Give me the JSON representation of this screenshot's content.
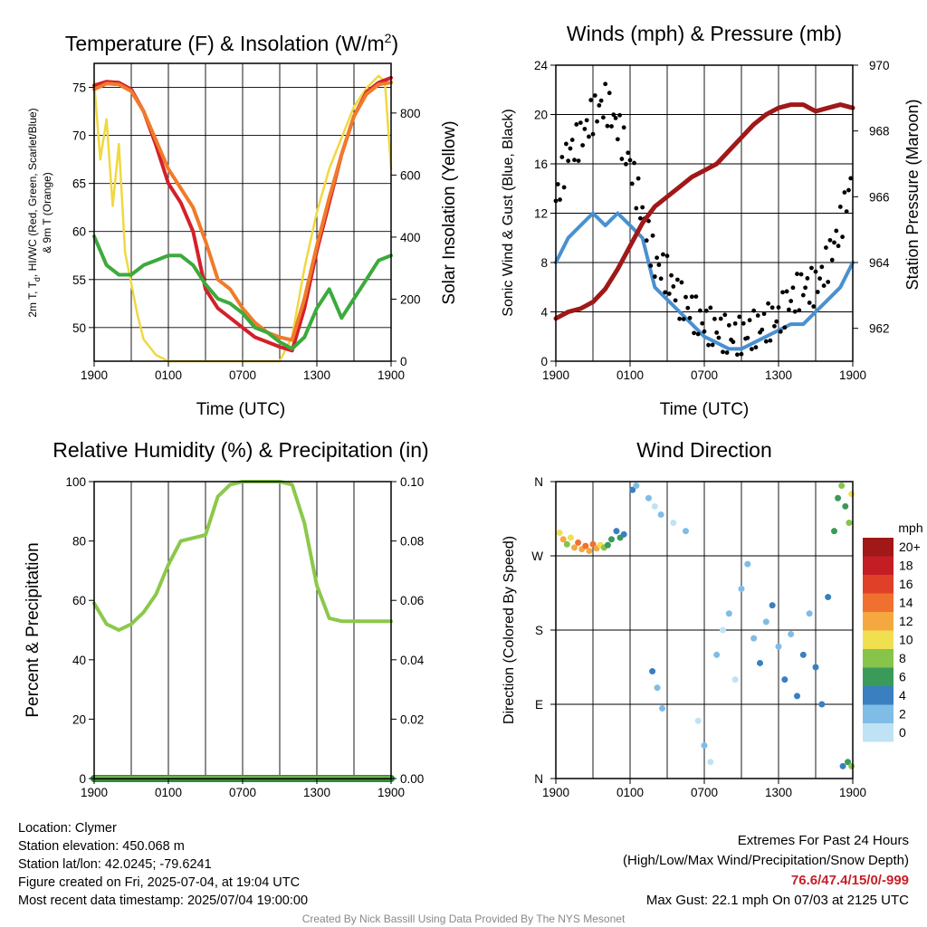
{
  "footer": {
    "location": "Location: Clymer",
    "elevation": "Station elevation: 450.068 m",
    "latlon": "Station lat/lon: 42.0245; -79.6241",
    "created": "Figure created on Fri, 2025-07-04, at 19:04 UTC",
    "recent": "Most recent data timestamp: 2025/07/04 19:00:00",
    "extremes_title": "Extremes For Past 24 Hours",
    "extremes_sub": "(High/Low/Max Wind/Precipitation/Snow Depth)",
    "extremes_values": "76.6/47.4/15/0/-999",
    "max_gust": "Max Gust: 22.1 mph On 07/03 at 2125 UTC",
    "credit": "Created By Nick Bassill Using Data Provided By The NYS Mesonet"
  },
  "chart_data": [
    {
      "type": "line",
      "id": "temp",
      "title": "Temperature (F) & Insolation (W/m",
      "title_sup": "2",
      "title_end": ")",
      "xlabel": "Time (UTC)",
      "ylabel_line1": "2m T, T",
      "ylabel_sub": "d",
      "ylabel_line1b": ", HI/WC (Red, Green, Scarlet/Blue)",
      "ylabel_line2": "& 9m T (Orange)",
      "y2label": "Solar Insolation (Yellow)",
      "xticks": [
        "1900",
        "0100",
        "0700",
        "1300",
        "1900"
      ],
      "xlim_hours": [
        0,
        24
      ],
      "ylim": [
        46.5,
        77.5
      ],
      "yticks": [
        50,
        55,
        60,
        65,
        70,
        75
      ],
      "y2lim": [
        0,
        960
      ],
      "y2ticks": [
        0,
        200,
        400,
        600,
        800
      ],
      "series": [
        {
          "color": "#f0d840",
          "axis": "right",
          "x": [
            0,
            0.5,
            1,
            1.5,
            2,
            2.5,
            3,
            3.5,
            4,
            5,
            6,
            7,
            8,
            9,
            10,
            11,
            12,
            13,
            14,
            15,
            16,
            17,
            18,
            19,
            20,
            21,
            22,
            23,
            23.5,
            24
          ],
          "values": [
            900,
            650,
            780,
            500,
            700,
            350,
            250,
            150,
            70,
            20,
            0,
            0,
            0,
            0,
            0,
            0,
            0,
            0,
            0,
            0,
            80,
            300,
            480,
            620,
            720,
            820,
            880,
            920,
            900,
            620
          ]
        },
        {
          "color": "#d4202a",
          "axis": "left",
          "x": [
            0,
            1,
            2,
            3,
            4,
            5,
            6,
            7,
            8,
            9,
            10,
            11,
            12,
            13,
            14,
            15,
            16,
            17,
            18,
            19,
            20,
            21,
            22,
            23,
            24
          ],
          "values": [
            75.2,
            75.6,
            75.5,
            74.8,
            72.5,
            69,
            65,
            63,
            60,
            54,
            52,
            51,
            50,
            49,
            48.5,
            48,
            47.6,
            52,
            58,
            63,
            68,
            72,
            74.5,
            75.5,
            76
          ]
        },
        {
          "color": "#f07b2a",
          "axis": "left",
          "x": [
            0,
            1,
            2,
            3,
            4,
            5,
            6,
            7,
            8,
            9,
            10,
            11,
            12,
            13,
            14,
            15,
            16,
            17,
            18,
            19,
            20,
            21,
            22,
            23,
            24
          ],
          "values": [
            74.8,
            75.4,
            75.3,
            74.6,
            72.5,
            69.5,
            66.5,
            64.5,
            62.5,
            59,
            55,
            54,
            52,
            50.5,
            49.5,
            49,
            48.7,
            53,
            58.5,
            63.5,
            68,
            72,
            74.3,
            75.3,
            75.5
          ]
        },
        {
          "color": "#3caa3c",
          "axis": "left",
          "x": [
            0,
            1,
            2,
            3,
            4,
            5,
            6,
            7,
            8,
            9,
            10,
            11,
            12,
            13,
            14,
            15,
            16,
            17,
            18,
            19,
            20,
            21,
            22,
            23,
            24
          ],
          "values": [
            59.5,
            56.5,
            55.5,
            55.5,
            56.5,
            57,
            57.5,
            57.5,
            56.5,
            54.5,
            53,
            52.5,
            51.5,
            50,
            49.5,
            48.5,
            47.8,
            49,
            52,
            54,
            51,
            53,
            55,
            57,
            57.5
          ]
        }
      ]
    },
    {
      "type": "line",
      "id": "wind",
      "title": "Winds (mph) & Pressure (mb)",
      "xlabel": "Time (UTC)",
      "ylabel": "Sonic Wind & Gust (Blue, Black)",
      "y2label": "Station Pressure (Maroon)",
      "xticks": [
        "1900",
        "0100",
        "0700",
        "1300",
        "1900"
      ],
      "xlim_hours": [
        0,
        24
      ],
      "ylim": [
        0,
        24
      ],
      "yticks": [
        0,
        4,
        8,
        12,
        16,
        20,
        24
      ],
      "y2lim": [
        961,
        970
      ],
      "y2ticks": [
        962,
        964,
        966,
        968,
        970
      ],
      "series": [
        {
          "name_key": "wind",
          "color": "#4a90d0",
          "axis": "left",
          "x": [
            0,
            1,
            2,
            3,
            4,
            5,
            6,
            7,
            8,
            9,
            10,
            11,
            12,
            13,
            14,
            15,
            16,
            17,
            18,
            19,
            20,
            21,
            22,
            23,
            24
          ],
          "values": [
            8,
            10,
            11,
            12,
            11,
            12,
            11,
            10,
            6,
            5,
            4,
            3,
            2,
            1.5,
            1,
            1,
            1.5,
            2,
            2.5,
            3,
            3,
            4,
            5,
            6,
            8
          ]
        },
        {
          "name_key": "gust",
          "color": "#000000",
          "axis": "left",
          "x": [
            0,
            1,
            2,
            3,
            4,
            5,
            6,
            7,
            8,
            9,
            10,
            11,
            12,
            13,
            14,
            15,
            16,
            17,
            18,
            19,
            20,
            21,
            22,
            23,
            24
          ],
          "values": [
            13,
            17,
            18,
            20,
            21,
            19,
            16,
            12,
            8,
            7,
            5,
            4,
            3,
            2.5,
            2,
            2,
            2.5,
            3,
            3.5,
            5,
            6,
            6,
            8,
            11,
            15
          ]
        },
        {
          "name_key": "pressure",
          "color": "#a01818",
          "axis": "right",
          "x": [
            0,
            1,
            2,
            3,
            4,
            5,
            6,
            7,
            8,
            9,
            10,
            11,
            12,
            13,
            14,
            15,
            16,
            17,
            18,
            19,
            20,
            21,
            22,
            23,
            24
          ],
          "values": [
            962.3,
            962.5,
            962.6,
            962.8,
            963.2,
            963.8,
            964.5,
            965.2,
            965.7,
            966.0,
            966.3,
            966.6,
            966.8,
            967.0,
            967.4,
            967.8,
            968.2,
            968.5,
            968.7,
            968.8,
            968.8,
            968.6,
            968.7,
            968.8,
            968.7
          ]
        }
      ]
    },
    {
      "type": "line",
      "id": "rh",
      "title": "Relative Humidity (%) & Precipitation (in)",
      "xlabel": "",
      "ylabel": "Percent & Precipitation",
      "xticks": [
        "1900",
        "0100",
        "0700",
        "1300",
        "1900"
      ],
      "xlim_hours": [
        0,
        24
      ],
      "ylim": [
        0,
        100
      ],
      "yticks": [
        0,
        20,
        40,
        60,
        80,
        100
      ],
      "y2lim": [
        0,
        0.1
      ],
      "y2ticks": [
        "0.00",
        "0.02",
        "0.04",
        "0.06",
        "0.08",
        "0.10"
      ],
      "series": [
        {
          "color": "#8cc84a",
          "axis": "left",
          "x": [
            0,
            1,
            2,
            3,
            4,
            5,
            6,
            7,
            8,
            9,
            10,
            11,
            12,
            13,
            14,
            15,
            16,
            17,
            18,
            19,
            20,
            21,
            22,
            23,
            24
          ],
          "values": [
            59,
            52,
            50,
            52,
            56,
            62,
            72,
            80,
            81,
            82,
            95,
            99,
            100,
            100,
            100,
            100,
            99,
            86,
            65,
            54,
            53,
            53,
            53,
            53,
            53
          ]
        },
        {
          "color": "#2e8b3c",
          "axis": "right",
          "x": [
            0,
            24
          ],
          "values": [
            0,
            0
          ]
        }
      ]
    },
    {
      "type": "scatter",
      "id": "dir",
      "title": "Wind Direction",
      "ylabel": "Direction (Colored By Speed)",
      "xticks": [
        "1900",
        "0100",
        "0700",
        "1300",
        "1900"
      ],
      "yticks": [
        "N",
        "E",
        "S",
        "W",
        "N"
      ],
      "ylim_degrees": [
        0,
        360
      ],
      "xlim_hours": [
        0,
        24
      ],
      "colorbar": {
        "unit": "mph",
        "labels": [
          "0",
          "2",
          "4",
          "6",
          "8",
          "10",
          "12",
          "14",
          "16",
          "18",
          "20+"
        ],
        "colors": [
          "#bfe3f5",
          "#7fbde6",
          "#3a7fc0",
          "#3a9a5a",
          "#86c44a",
          "#f0e050",
          "#f5a840",
          "#f07030",
          "#e04028",
          "#c41e24",
          "#a01818"
        ]
      },
      "points": [
        {
          "x": 0.3,
          "y": 298,
          "c": 10
        },
        {
          "x": 0.6,
          "y": 290,
          "c": 12
        },
        {
          "x": 0.9,
          "y": 284,
          "c": 8
        },
        {
          "x": 1.2,
          "y": 292,
          "c": 10
        },
        {
          "x": 1.5,
          "y": 280,
          "c": 12
        },
        {
          "x": 1.8,
          "y": 286,
          "c": 14
        },
        {
          "x": 2.1,
          "y": 278,
          "c": 12
        },
        {
          "x": 2.4,
          "y": 282,
          "c": 14
        },
        {
          "x": 2.7,
          "y": 276,
          "c": 12
        },
        {
          "x": 3.0,
          "y": 284,
          "c": 14
        },
        {
          "x": 3.3,
          "y": 279,
          "c": 12
        },
        {
          "x": 3.6,
          "y": 283,
          "c": 10
        },
        {
          "x": 3.9,
          "y": 280,
          "c": 8
        },
        {
          "x": 4.2,
          "y": 283,
          "c": 6
        },
        {
          "x": 4.5,
          "y": 290,
          "c": 6
        },
        {
          "x": 4.9,
          "y": 300,
          "c": 4
        },
        {
          "x": 5.2,
          "y": 292,
          "c": 6
        },
        {
          "x": 5.5,
          "y": 296,
          "c": 4
        },
        {
          "x": 6.2,
          "y": 350,
          "c": 4
        },
        {
          "x": 6.5,
          "y": 355,
          "c": 2
        },
        {
          "x": 7.5,
          "y": 340,
          "c": 2
        },
        {
          "x": 8.0,
          "y": 330,
          "c": 0
        },
        {
          "x": 8.5,
          "y": 320,
          "c": 2
        },
        {
          "x": 7.8,
          "y": 130,
          "c": 4
        },
        {
          "x": 8.2,
          "y": 110,
          "c": 2
        },
        {
          "x": 8.6,
          "y": 85,
          "c": 2
        },
        {
          "x": 9.5,
          "y": 310,
          "c": 0
        },
        {
          "x": 10.5,
          "y": 300,
          "c": 2
        },
        {
          "x": 11.5,
          "y": 70,
          "c": 0
        },
        {
          "x": 12.0,
          "y": 40,
          "c": 2
        },
        {
          "x": 12.5,
          "y": 20,
          "c": 0
        },
        {
          "x": 13.0,
          "y": 150,
          "c": 2
        },
        {
          "x": 13.5,
          "y": 180,
          "c": 0
        },
        {
          "x": 14.0,
          "y": 200,
          "c": 2
        },
        {
          "x": 14.5,
          "y": 120,
          "c": 0
        },
        {
          "x": 15.0,
          "y": 230,
          "c": 2
        },
        {
          "x": 15.5,
          "y": 260,
          "c": 2
        },
        {
          "x": 16.0,
          "y": 170,
          "c": 2
        },
        {
          "x": 16.5,
          "y": 140,
          "c": 4
        },
        {
          "x": 17.0,
          "y": 190,
          "c": 2
        },
        {
          "x": 17.5,
          "y": 210,
          "c": 4
        },
        {
          "x": 18.0,
          "y": 160,
          "c": 2
        },
        {
          "x": 18.5,
          "y": 120,
          "c": 4
        },
        {
          "x": 19.0,
          "y": 175,
          "c": 2
        },
        {
          "x": 19.5,
          "y": 100,
          "c": 4
        },
        {
          "x": 20.0,
          "y": 150,
          "c": 4
        },
        {
          "x": 20.5,
          "y": 200,
          "c": 2
        },
        {
          "x": 21.0,
          "y": 135,
          "c": 4
        },
        {
          "x": 21.5,
          "y": 90,
          "c": 4
        },
        {
          "x": 22.0,
          "y": 220,
          "c": 4
        },
        {
          "x": 22.5,
          "y": 300,
          "c": 6
        },
        {
          "x": 22.8,
          "y": 340,
          "c": 6
        },
        {
          "x": 23.1,
          "y": 355,
          "c": 8
        },
        {
          "x": 23.4,
          "y": 330,
          "c": 6
        },
        {
          "x": 23.7,
          "y": 310,
          "c": 8
        },
        {
          "x": 23.9,
          "y": 345,
          "c": 10
        },
        {
          "x": 23.2,
          "y": 15,
          "c": 4
        },
        {
          "x": 23.6,
          "y": 20,
          "c": 6
        },
        {
          "x": 23.9,
          "y": 15,
          "c": 8
        }
      ]
    }
  ]
}
